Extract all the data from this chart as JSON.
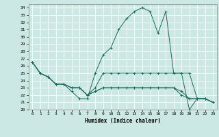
{
  "xlabel": "Humidex (Indice chaleur)",
  "background_color": "#cce8e4",
  "line_color": "#1a6b5a",
  "grid_color": "#ffffff",
  "xlim": [
    -0.5,
    23.5
  ],
  "ylim": [
    20,
    34.5
  ],
  "yticks": [
    20,
    21,
    22,
    23,
    24,
    25,
    26,
    27,
    28,
    29,
    30,
    31,
    32,
    33,
    34
  ],
  "xticks": [
    0,
    1,
    2,
    3,
    4,
    5,
    6,
    7,
    8,
    9,
    10,
    11,
    12,
    13,
    14,
    15,
    16,
    17,
    18,
    19,
    20,
    21,
    22,
    23
  ],
  "series": [
    [
      26.5,
      25.0,
      24.5,
      23.5,
      23.5,
      22.5,
      21.5,
      21.5,
      25.0,
      27.5,
      28.5,
      31.0,
      32.5,
      33.5,
      34.0,
      33.5,
      30.5,
      33.5,
      25.0,
      25.0,
      20.0,
      21.5,
      21.5,
      21.0
    ],
    [
      26.5,
      25.0,
      24.5,
      23.5,
      23.5,
      23.0,
      23.0,
      22.0,
      23.0,
      25.0,
      25.0,
      25.0,
      25.0,
      25.0,
      25.0,
      25.0,
      25.0,
      25.0,
      25.0,
      25.0,
      25.0,
      21.5,
      21.5,
      21.0
    ],
    [
      26.5,
      25.0,
      24.5,
      23.5,
      23.5,
      23.0,
      23.0,
      22.0,
      22.5,
      23.0,
      23.0,
      23.0,
      23.0,
      23.0,
      23.0,
      23.0,
      23.0,
      23.0,
      23.0,
      22.5,
      21.5,
      21.5,
      21.5,
      21.0
    ],
    [
      26.5,
      25.0,
      24.5,
      23.5,
      23.5,
      23.0,
      23.0,
      22.0,
      22.5,
      23.0,
      23.0,
      23.0,
      23.0,
      23.0,
      23.0,
      23.0,
      23.0,
      23.0,
      23.0,
      22.0,
      21.5,
      21.5,
      21.5,
      21.0
    ]
  ]
}
